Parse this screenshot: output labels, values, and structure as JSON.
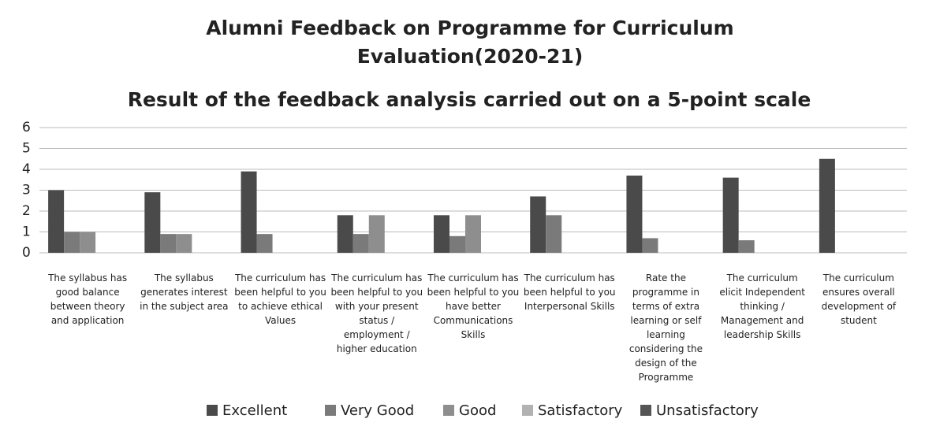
{
  "chart_data": {
    "type": "bar",
    "title": "Alumni Feedback on Programme for Curriculum Evaluation(2020-21)",
    "subtitle": "Result of the feedback analysis carried out on a 5-point scale",
    "categories": [
      "The syllabus has good balance between theory and application",
      "The syllabus generates interest in the subject area",
      "The curriculum has been helpful to you to achieve ethical Values",
      "The curriculum has been helpful to you with your present status / employment / higher education",
      "The curriculum has been helpful to you have better Communications Skills",
      "The curriculum has been helpful to you Interpersonal Skills",
      "Rate the programme in terms of extra learning or self learning considering the design of the Programme",
      "The curriculum elicit Independent thinking / Management and leadership Skills",
      "The curriculum ensures overall development of student"
    ],
    "series": [
      {
        "name": "Excellent",
        "color": "#4a4a4a",
        "values": [
          3,
          2.9,
          3.9,
          1.8,
          1.8,
          2.7,
          3.7,
          3.6,
          4.5
        ]
      },
      {
        "name": "Very Good",
        "color": "#7a7a7a",
        "values": [
          1,
          0.9,
          0.9,
          0.9,
          0.8,
          1.8,
          0.7,
          0.6,
          0
        ]
      },
      {
        "name": "Good",
        "color": "#8e8e8e",
        "values": [
          1,
          0.9,
          0,
          1.8,
          1.8,
          0,
          0,
          0,
          0
        ]
      },
      {
        "name": "Satisfactory",
        "color": "#b2b2b2",
        "values": [
          0,
          0,
          0,
          0,
          0,
          0,
          0,
          0,
          0
        ]
      },
      {
        "name": "Unsatisfactory",
        "color": "#555555",
        "values": [
          0,
          0,
          0,
          0,
          0,
          0,
          0,
          0,
          0
        ]
      }
    ],
    "ylim": [
      0,
      6
    ],
    "yticks": [
      0,
      1,
      2,
      3,
      4,
      5,
      6
    ],
    "grid": true
  }
}
